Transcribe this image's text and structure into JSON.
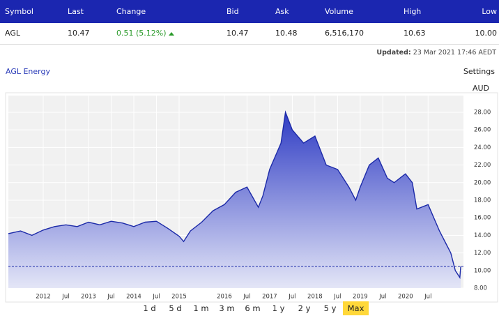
{
  "table": {
    "header": [
      "Symbol",
      "Last",
      "Change",
      "Bid",
      "Ask",
      "Volume",
      "High",
      "Low"
    ],
    "row": [
      "AGL",
      "10.47",
      "0.51 (5.12%)",
      "10.47",
      "10.48",
      "6,516,170",
      "10.63",
      "10.00"
    ]
  },
  "updated": {
    "label": "Updated:",
    "value": "23 Mar 2021 17:46 AEDT"
  },
  "settings": "Settings",
  "currency": "AUD",
  "period_buttons": [
    "1 d",
    "5 d",
    "1 m",
    "3 m",
    "6 m",
    "1 y",
    "2 y",
    "5 y",
    "Max"
  ],
  "selected_period_index": 8,
  "chart_data": {
    "type": "area",
    "title": "AGL Energy",
    "x": [
      2011.23,
      2011.5,
      2011.75,
      2012.0,
      2012.25,
      2012.5,
      2012.75,
      2013.0,
      2013.25,
      2013.5,
      2013.75,
      2014.0,
      2014.25,
      2014.5,
      2014.75,
      2015.0,
      2015.1,
      2015.25,
      2015.5,
      2015.75,
      2016.0,
      2016.25,
      2016.5,
      2016.75,
      2016.85,
      2017.0,
      2017.25,
      2017.35,
      2017.5,
      2017.75,
      2018.0,
      2018.25,
      2018.5,
      2018.75,
      2018.9,
      2019.0,
      2019.2,
      2019.4,
      2019.6,
      2019.75,
      2019.9,
      2020.0,
      2020.15,
      2020.25,
      2020.5,
      2020.75,
      2020.9,
      2021.0,
      2021.1,
      2021.2,
      2021.22
    ],
    "series": [
      {
        "name": "AGL Energy",
        "color": "#1c2aa8",
        "values": [
          14.2,
          14.5,
          14.0,
          14.6,
          15.0,
          15.2,
          15.0,
          15.5,
          15.2,
          15.6,
          15.4,
          15.0,
          15.5,
          15.6,
          14.8,
          13.9,
          13.3,
          14.5,
          15.5,
          16.8,
          17.5,
          18.9,
          19.5,
          17.2,
          18.5,
          21.5,
          24.5,
          28.0,
          26.0,
          24.5,
          25.3,
          22.0,
          21.5,
          19.5,
          18.0,
          19.5,
          22.0,
          22.8,
          20.5,
          20.0,
          20.6,
          21.0,
          20.0,
          17.0,
          17.5,
          14.5,
          13.0,
          12.0,
          10.0,
          9.2,
          10.47
        ]
      }
    ],
    "reference_line": 10.47,
    "xlim": [
      2011.23,
      2021.28
    ],
    "ylim": [
      8,
      29.9
    ],
    "xticks": [
      2012,
      {
        "value": 2012.5,
        "label": "Jul"
      },
      2013,
      {
        "value": 2013.5,
        "label": "Jul"
      },
      2014,
      {
        "value": 2014.5,
        "label": "Jul"
      },
      2015,
      2016,
      {
        "value": 2016.5,
        "label": "Jul"
      },
      2017,
      {
        "value": 2017.5,
        "label": "Jul"
      },
      2018,
      {
        "value": 2018.5,
        "label": "Jul"
      },
      2019,
      {
        "value": 2019.5,
        "label": "Jul"
      },
      2020,
      {
        "value": 2020.5,
        "label": "Jul"
      }
    ],
    "yticks": [
      {
        "value": 8,
        "label": "8.00"
      },
      {
        "value": 10,
        "label": "10.00"
      },
      {
        "value": 12,
        "label": "12.00"
      },
      {
        "value": 14,
        "label": "14.00"
      },
      {
        "value": 16,
        "label": "16.00"
      },
      {
        "value": 18,
        "label": "18.00"
      },
      {
        "value": 20,
        "label": "20.00"
      },
      {
        "value": 22,
        "label": "22.00"
      },
      {
        "value": 24,
        "label": "24.00"
      },
      {
        "value": 26,
        "label": "26.00"
      },
      {
        "value": 28,
        "label": "28.00"
      }
    ],
    "grid": true
  }
}
